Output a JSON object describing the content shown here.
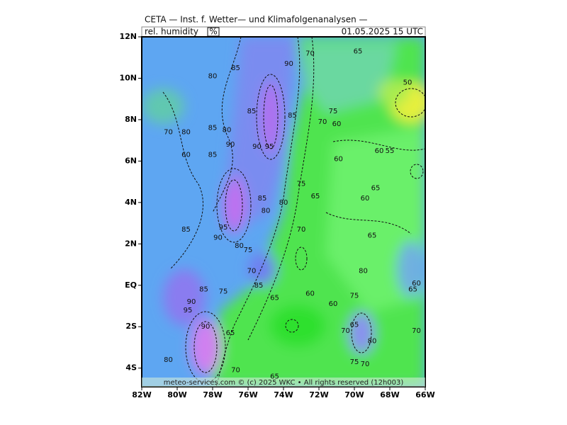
{
  "header": {
    "title": "CETA — Inst. f. Wetter— und Klimafolgenanalysen —",
    "parameter": "rel. humidity",
    "unit": "%",
    "valid_time": "01.05.2025 15 UTC"
  },
  "axes": {
    "lat_ticks": [
      {
        "value": 12,
        "label": "12N"
      },
      {
        "value": 10,
        "label": "10N"
      },
      {
        "value": 8,
        "label": "8N"
      },
      {
        "value": 6,
        "label": "6N"
      },
      {
        "value": 4,
        "label": "4N"
      },
      {
        "value": 2,
        "label": "2N"
      },
      {
        "value": 0,
        "label": "EQ"
      },
      {
        "value": -2,
        "label": "2S"
      },
      {
        "value": -4,
        "label": "4S"
      }
    ],
    "lon_ticks": [
      {
        "value": -82,
        "label": "82W"
      },
      {
        "value": -80,
        "label": "80W"
      },
      {
        "value": -78,
        "label": "78W"
      },
      {
        "value": -76,
        "label": "76W"
      },
      {
        "value": -74,
        "label": "74W"
      },
      {
        "value": -72,
        "label": "72W"
      },
      {
        "value": -70,
        "label": "70W"
      },
      {
        "value": -68,
        "label": "68W"
      },
      {
        "value": -66,
        "label": "66W"
      }
    ],
    "lat_range": [
      -4.9,
      12
    ],
    "lon_range": [
      -82,
      -66
    ]
  },
  "contour_labels": [
    {
      "value": 85,
      "lon": -76.7,
      "lat": 10.5
    },
    {
      "value": 90,
      "lon": -73.7,
      "lat": 10.7
    },
    {
      "value": 70,
      "lon": -72.5,
      "lat": 11.2
    },
    {
      "value": 65,
      "lon": -69.8,
      "lat": 11.3
    },
    {
      "value": 50,
      "lon": -67.0,
      "lat": 9.8
    },
    {
      "value": 80,
      "lon": -78.0,
      "lat": 10.1
    },
    {
      "value": 85,
      "lon": -75.8,
      "lat": 8.4
    },
    {
      "value": 80,
      "lon": -77.2,
      "lat": 7.5
    },
    {
      "value": 85,
      "lon": -78.0,
      "lat": 7.6
    },
    {
      "value": 70,
      "lon": -80.5,
      "lat": 7.4
    },
    {
      "value": 80,
      "lon": -79.5,
      "lat": 7.4
    },
    {
      "value": 60,
      "lon": -79.5,
      "lat": 6.3
    },
    {
      "value": 85,
      "lon": -78.0,
      "lat": 6.3
    },
    {
      "value": 90,
      "lon": -77.0,
      "lat": 6.8
    },
    {
      "value": 90,
      "lon": -75.5,
      "lat": 6.7
    },
    {
      "value": 95,
      "lon": -74.8,
      "lat": 6.7
    },
    {
      "value": 85,
      "lon": -73.5,
      "lat": 8.2
    },
    {
      "value": 70,
      "lon": -71.8,
      "lat": 7.9
    },
    {
      "value": 75,
      "lon": -71.2,
      "lat": 8.4
    },
    {
      "value": 60,
      "lon": -71.0,
      "lat": 7.8
    },
    {
      "value": 60,
      "lon": -70.9,
      "lat": 6.1
    },
    {
      "value": 60,
      "lon": -68.6,
      "lat": 6.5
    },
    {
      "value": 55,
      "lon": -68.0,
      "lat": 6.5
    },
    {
      "value": 65,
      "lon": -68.8,
      "lat": 4.7
    },
    {
      "value": 60,
      "lon": -69.4,
      "lat": 4.2
    },
    {
      "value": 65,
      "lon": -72.2,
      "lat": 4.3
    },
    {
      "value": 75,
      "lon": -73.0,
      "lat": 4.9
    },
    {
      "value": 80,
      "lon": -74.0,
      "lat": 4.0
    },
    {
      "value": 85,
      "lon": -75.2,
      "lat": 4.2
    },
    {
      "value": 80,
      "lon": -75.0,
      "lat": 3.6
    },
    {
      "value": 85,
      "lon": -79.5,
      "lat": 2.7
    },
    {
      "value": 95,
      "lon": -77.4,
      "lat": 2.8
    },
    {
      "value": 90,
      "lon": -77.7,
      "lat": 2.3
    },
    {
      "value": 80,
      "lon": -76.5,
      "lat": 1.9
    },
    {
      "value": 75,
      "lon": -76.0,
      "lat": 1.7
    },
    {
      "value": 70,
      "lon": -73.0,
      "lat": 2.7
    },
    {
      "value": 65,
      "lon": -69.0,
      "lat": 2.4
    },
    {
      "value": 80,
      "lon": -69.5,
      "lat": 0.7
    },
    {
      "value": 70,
      "lon": -75.8,
      "lat": 0.7
    },
    {
      "value": 85,
      "lon": -78.5,
      "lat": -0.2
    },
    {
      "value": 75,
      "lon": -77.4,
      "lat": -0.3
    },
    {
      "value": 85,
      "lon": -75.4,
      "lat": 0.0
    },
    {
      "value": 65,
      "lon": -74.5,
      "lat": -0.6
    },
    {
      "value": 60,
      "lon": -72.5,
      "lat": -0.4
    },
    {
      "value": 60,
      "lon": -71.2,
      "lat": -0.9
    },
    {
      "value": 75,
      "lon": -70.0,
      "lat": -0.5
    },
    {
      "value": 60,
      "lon": -66.5,
      "lat": 0.1
    },
    {
      "value": 65,
      "lon": -66.7,
      "lat": -0.2
    },
    {
      "value": 90,
      "lon": -79.2,
      "lat": -0.8
    },
    {
      "value": 95,
      "lon": -79.4,
      "lat": -1.2
    },
    {
      "value": 90,
      "lon": -78.4,
      "lat": -2.0
    },
    {
      "value": 65,
      "lon": -77.0,
      "lat": -2.3
    },
    {
      "value": 70,
      "lon": -70.5,
      "lat": -2.2
    },
    {
      "value": 65,
      "lon": -70.0,
      "lat": -1.9
    },
    {
      "value": 80,
      "lon": -69.0,
      "lat": -2.7
    },
    {
      "value": 70,
      "lon": -66.5,
      "lat": -2.2
    },
    {
      "value": 80,
      "lon": -80.5,
      "lat": -3.6
    },
    {
      "value": 70,
      "lon": -76.7,
      "lat": -4.1
    },
    {
      "value": 75,
      "lon": -70.0,
      "lat": -3.7
    },
    {
      "value": 70,
      "lon": -69.4,
      "lat": -3.8
    },
    {
      "value": 65,
      "lon": -74.5,
      "lat": -4.4
    }
  ],
  "footer": "meteo-services.com © (c) 2025 WKC • All rights reserved (12h003)"
}
